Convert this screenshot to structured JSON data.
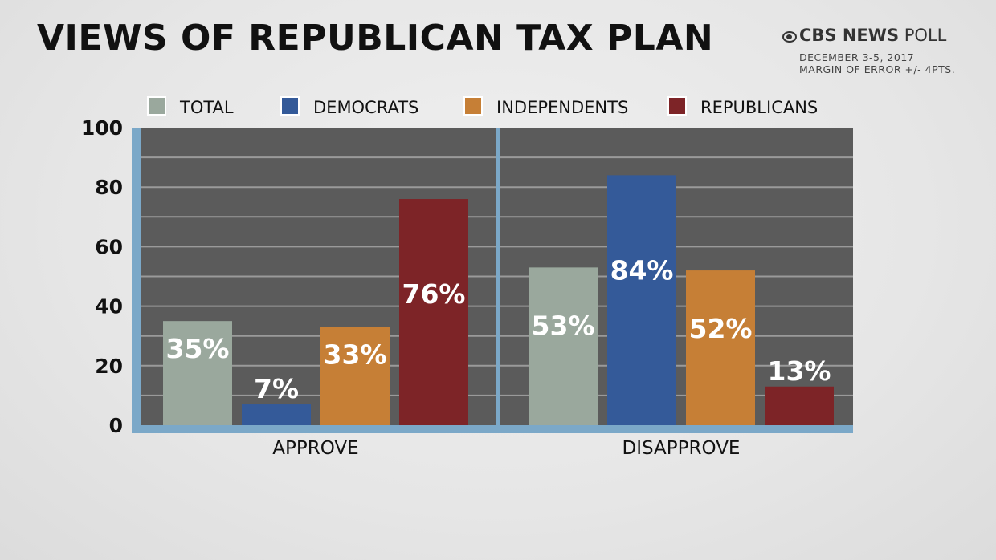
{
  "header": {
    "title": "VIEWS OF REPUBLICAN TAX PLAN",
    "brand_bold": "CBS NEWS",
    "brand_light": "POLL",
    "date": "DECEMBER 3-5, 2017",
    "margin": "MARGIN OF ERROR +/- 4PTS."
  },
  "chart_data": {
    "type": "bar",
    "title": "VIEWS OF REPUBLICAN TAX PLAN",
    "categories": [
      "APPROVE",
      "DISAPPROVE"
    ],
    "series": [
      {
        "name": "TOTAL",
        "color": "#9aa89d",
        "values": [
          35,
          53
        ],
        "labels": [
          "35%",
          "53%"
        ]
      },
      {
        "name": "DEMOCRATS",
        "color": "#345a99",
        "values": [
          7,
          84
        ],
        "labels": [
          "7%",
          "84%"
        ]
      },
      {
        "name": "INDEPENDENTS",
        "color": "#c67f36",
        "values": [
          33,
          52
        ],
        "labels": [
          "33%",
          "52%"
        ]
      },
      {
        "name": "REPUBLICANS",
        "color": "#7d2427",
        "values": [
          76,
          13
        ],
        "labels": [
          "76%",
          "13%"
        ]
      }
    ],
    "yticks": [
      0,
      20,
      40,
      60,
      80,
      100
    ],
    "ylim": [
      0,
      100
    ],
    "grid": true,
    "legend": "top",
    "plot_bg": "#5b5b5b",
    "axis_color": "#7ba8c8"
  }
}
